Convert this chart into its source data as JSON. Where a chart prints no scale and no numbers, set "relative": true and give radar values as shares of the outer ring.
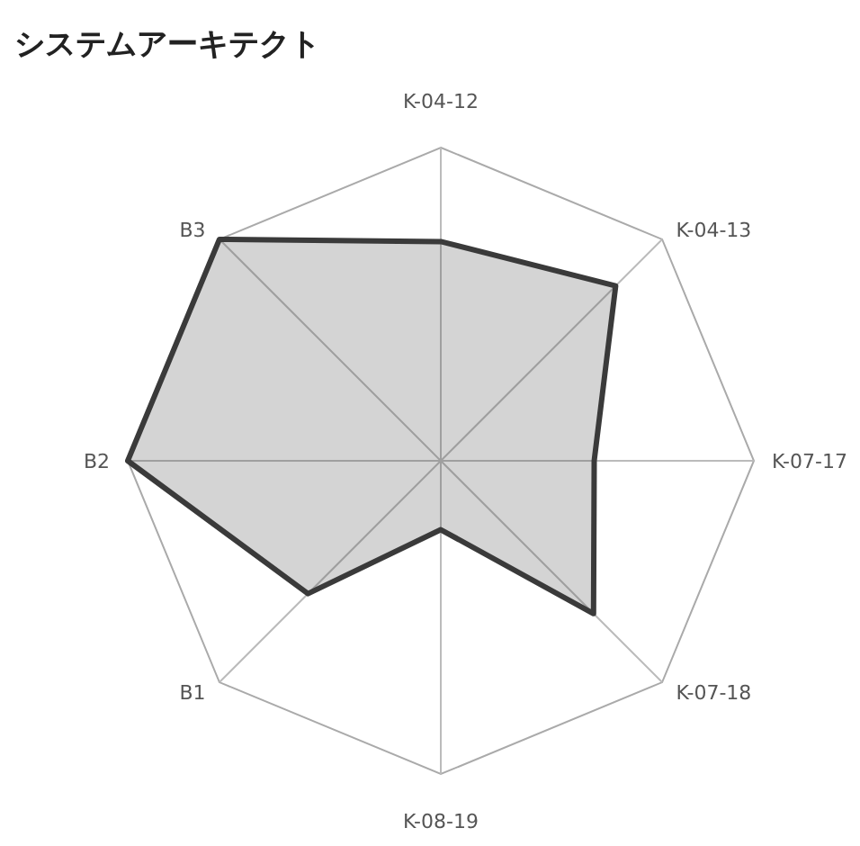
{
  "chart_data": {
    "type": "radar",
    "title": "システムアーキテクト",
    "categories": [
      "K-04-12",
      "K-04-13",
      "K-07-17",
      "K-07-18",
      "K-08-19",
      "B1",
      "B2",
      "B3"
    ],
    "relative": true,
    "grid": true,
    "series": [
      {
        "color": "#3a3a3a",
        "values": [
          0.7,
          0.79,
          0.49,
          0.69,
          0.22,
          0.6,
          1.0,
          1.0
        ]
      }
    ]
  }
}
